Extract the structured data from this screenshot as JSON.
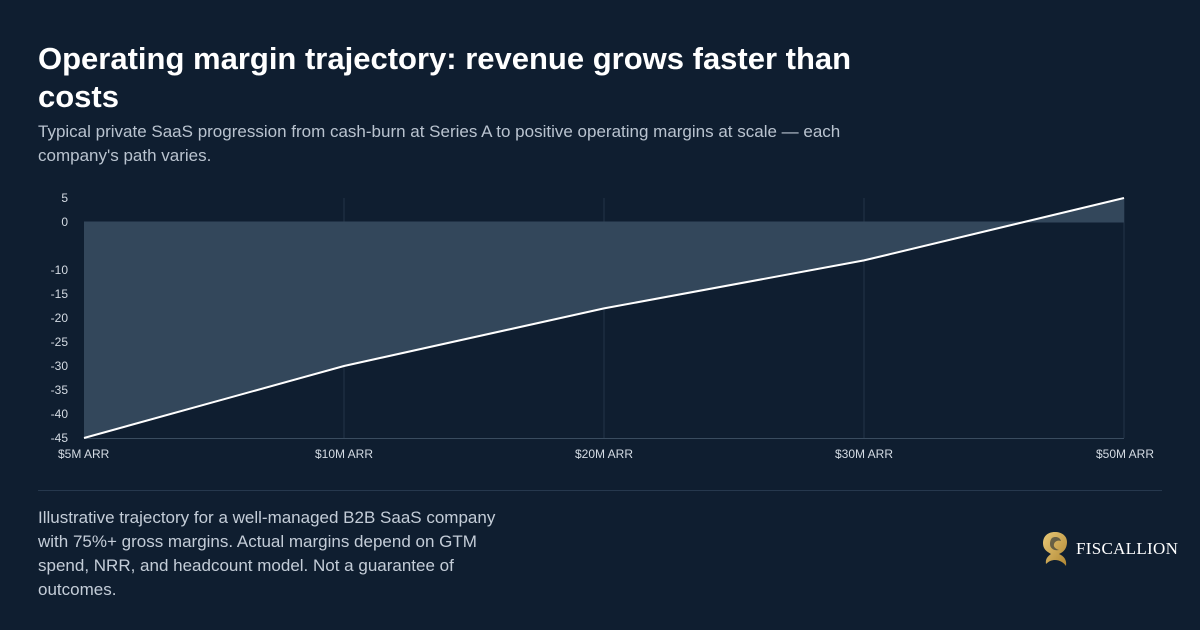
{
  "header": {
    "title": "Operating margin trajectory: revenue grows faster than costs",
    "subtitle": "Typical private SaaS progression from cash-burn at Series A to positive operating margins at scale — each company's path varies."
  },
  "chart_data": {
    "type": "area",
    "categories": [
      "$5M ARR",
      "$10M ARR",
      "$20M ARR",
      "$30M ARR",
      "$50M ARR"
    ],
    "series": [
      {
        "values": [
          -45,
          -30,
          -18,
          -8,
          5
        ]
      }
    ],
    "yticks": [
      "5",
      "0",
      "-10",
      "-15",
      "-20",
      "-25",
      "-30",
      "-35",
      "-40",
      "-45"
    ],
    "ylim": [
      -45,
      5
    ],
    "grid": "vertical",
    "colors": {
      "line": "#ffffff",
      "fill": "#33475b",
      "grid": "#233447",
      "axis": "#3a4c5f",
      "tick_text": "#d4dbe3"
    }
  },
  "footer": {
    "note": "Illustrative trajectory for a well-managed B2B SaaS company with 75%+ gross margins. Actual margins depend on GTM spend, NRR, and headcount model. Not a guarantee of outcomes.",
    "brand_name": "FISCALLION",
    "brand_icon": "gold-lion-seal-icon",
    "brand_color": "#c9a24a"
  }
}
